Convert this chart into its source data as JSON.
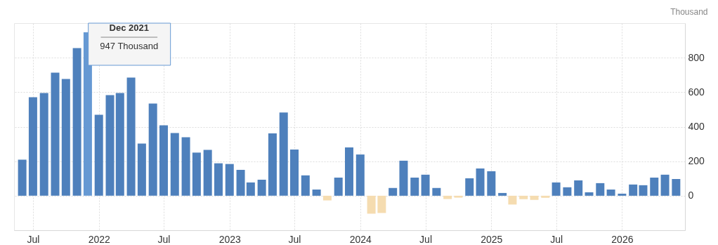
{
  "chart_data": {
    "type": "bar",
    "ylabel": "Thousand",
    "x": [
      "2021-06",
      "2021-07",
      "2021-08",
      "2021-09",
      "2021-10",
      "2021-11",
      "2021-12",
      "2022-01",
      "2022-02",
      "2022-03",
      "2022-04",
      "2022-05",
      "2022-06",
      "2022-07",
      "2022-08",
      "2022-09",
      "2022-10",
      "2022-11",
      "2022-12",
      "2023-01",
      "2023-02",
      "2023-03",
      "2023-04",
      "2023-05",
      "2023-06",
      "2023-07",
      "2023-08",
      "2023-09",
      "2023-10",
      "2023-11",
      "2023-12",
      "2024-01",
      "2024-02",
      "2024-03",
      "2024-04",
      "2024-05",
      "2024-06",
      "2024-07",
      "2024-08",
      "2024-09",
      "2024-10",
      "2024-11",
      "2024-12",
      "2025-01",
      "2025-02",
      "2025-03",
      "2025-04",
      "2025-05",
      "2025-06",
      "2025-07",
      "2025-08",
      "2025-09",
      "2025-10",
      "2025-11",
      "2025-12",
      "2026-01",
      "2026-02",
      "2026-03",
      "2026-04",
      "2026-05",
      "2026-06"
    ],
    "values": [
      209,
      571,
      595,
      713,
      677,
      856,
      947,
      469,
      583,
      595,
      685,
      302,
      534,
      408,
      363,
      339,
      250,
      266,
      188,
      184,
      150,
      77,
      93,
      361,
      482,
      268,
      118,
      36,
      -27,
      105,
      280,
      239,
      -104,
      -100,
      45,
      203,
      105,
      122,
      45,
      -19,
      -11,
      101,
      158,
      142,
      16,
      -51,
      -20,
      -24,
      -12,
      77,
      49,
      89,
      20,
      73,
      36,
      12,
      65,
      61,
      105,
      122,
      97
    ],
    "colors": [
      "#4e80bc",
      "#4e80bc",
      "#4e80bc",
      "#4e80bc",
      "#4e80bc",
      "#4e80bc",
      "#6699d3",
      "#4e80bc",
      "#4e80bc",
      "#4e80bc",
      "#4e80bc",
      "#4e80bc",
      "#4e80bc",
      "#4e80bc",
      "#4e80bc",
      "#4e80bc",
      "#4e80bc",
      "#4e80bc",
      "#4e80bc",
      "#4e80bc",
      "#4e80bc",
      "#4e80bc",
      "#4e80bc",
      "#4e80bc",
      "#4e80bc",
      "#4e80bc",
      "#4e80bc",
      "#4e80bc",
      "#f5dcb0",
      "#4e80bc",
      "#4e80bc",
      "#4e80bc",
      "#f5dcb0",
      "#f5dcb0",
      "#4e80bc",
      "#4e80bc",
      "#4e80bc",
      "#4e80bc",
      "#4e80bc",
      "#f5dcb0",
      "#f5dcb0",
      "#4e80bc",
      "#4e80bc",
      "#4e80bc",
      "#4e80bc",
      "#f5dcb0",
      "#f5dcb0",
      "#f5dcb0",
      "#f5dcb0",
      "#4e80bc",
      "#4e80bc",
      "#4e80bc",
      "#4e80bc",
      "#4e80bc",
      "#4e80bc",
      "#4e80bc",
      "#4e80bc",
      "#4e80bc",
      "#4e80bc",
      "#4e80bc",
      "#4e80bc"
    ],
    "xlim": [
      "2021-05-19",
      "2026-06-16"
    ],
    "xticks": [
      {
        "value": "2021-07",
        "label": "Jul"
      },
      {
        "value": "2022-01",
        "label": "2022"
      },
      {
        "value": "2022-07",
        "label": "Jul"
      },
      {
        "value": "2023-01",
        "label": "2023"
      },
      {
        "value": "2023-07",
        "label": "Jul"
      },
      {
        "value": "2024-01",
        "label": "2024"
      },
      {
        "value": "2024-07",
        "label": "Jul"
      },
      {
        "value": "2025-01",
        "label": "2025"
      },
      {
        "value": "2025-07",
        "label": "Jul"
      },
      {
        "value": "2026-01",
        "label": "2026"
      }
    ],
    "ylim": [
      -200,
      1000
    ],
    "yticks": [
      0,
      200,
      400,
      600,
      800
    ],
    "grid": true,
    "annotations": [
      {
        "text": "Dec 2021",
        "x": "2021-12",
        "y": 947
      },
      {
        "text": "947 Thousand",
        "x": "2021-12",
        "y": 947
      }
    ]
  }
}
